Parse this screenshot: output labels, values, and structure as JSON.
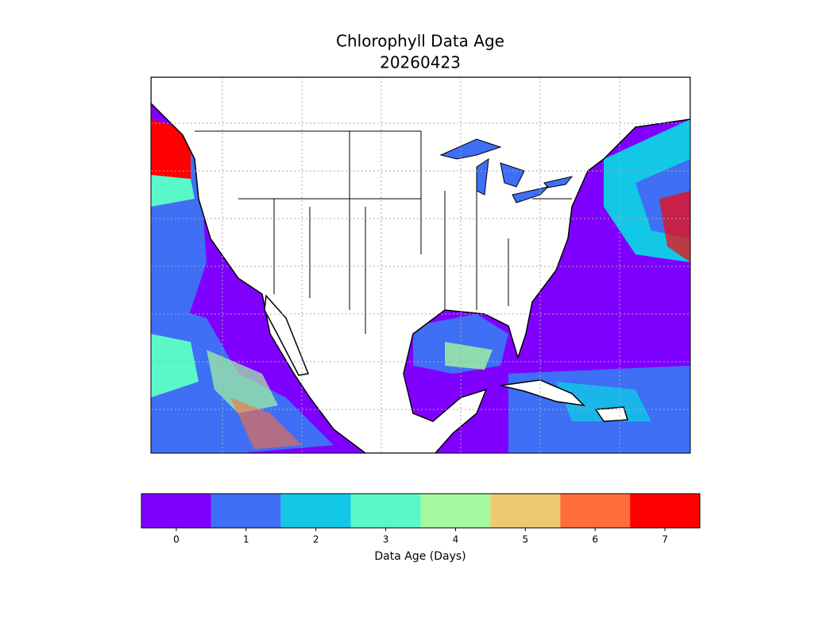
{
  "title": "Chlorophyll Data Age",
  "subtitle": "20260423",
  "colorbar": {
    "label": "Data Age (Days)",
    "ticks": [
      0,
      1,
      2,
      3,
      4,
      5,
      6,
      7
    ],
    "colors": [
      "#8000ff",
      "#3e6ff5",
      "#12c8e6",
      "#5af8c8",
      "#a4f89e",
      "#eec872",
      "#ff6e3a",
      "#ff0000"
    ]
  }
}
